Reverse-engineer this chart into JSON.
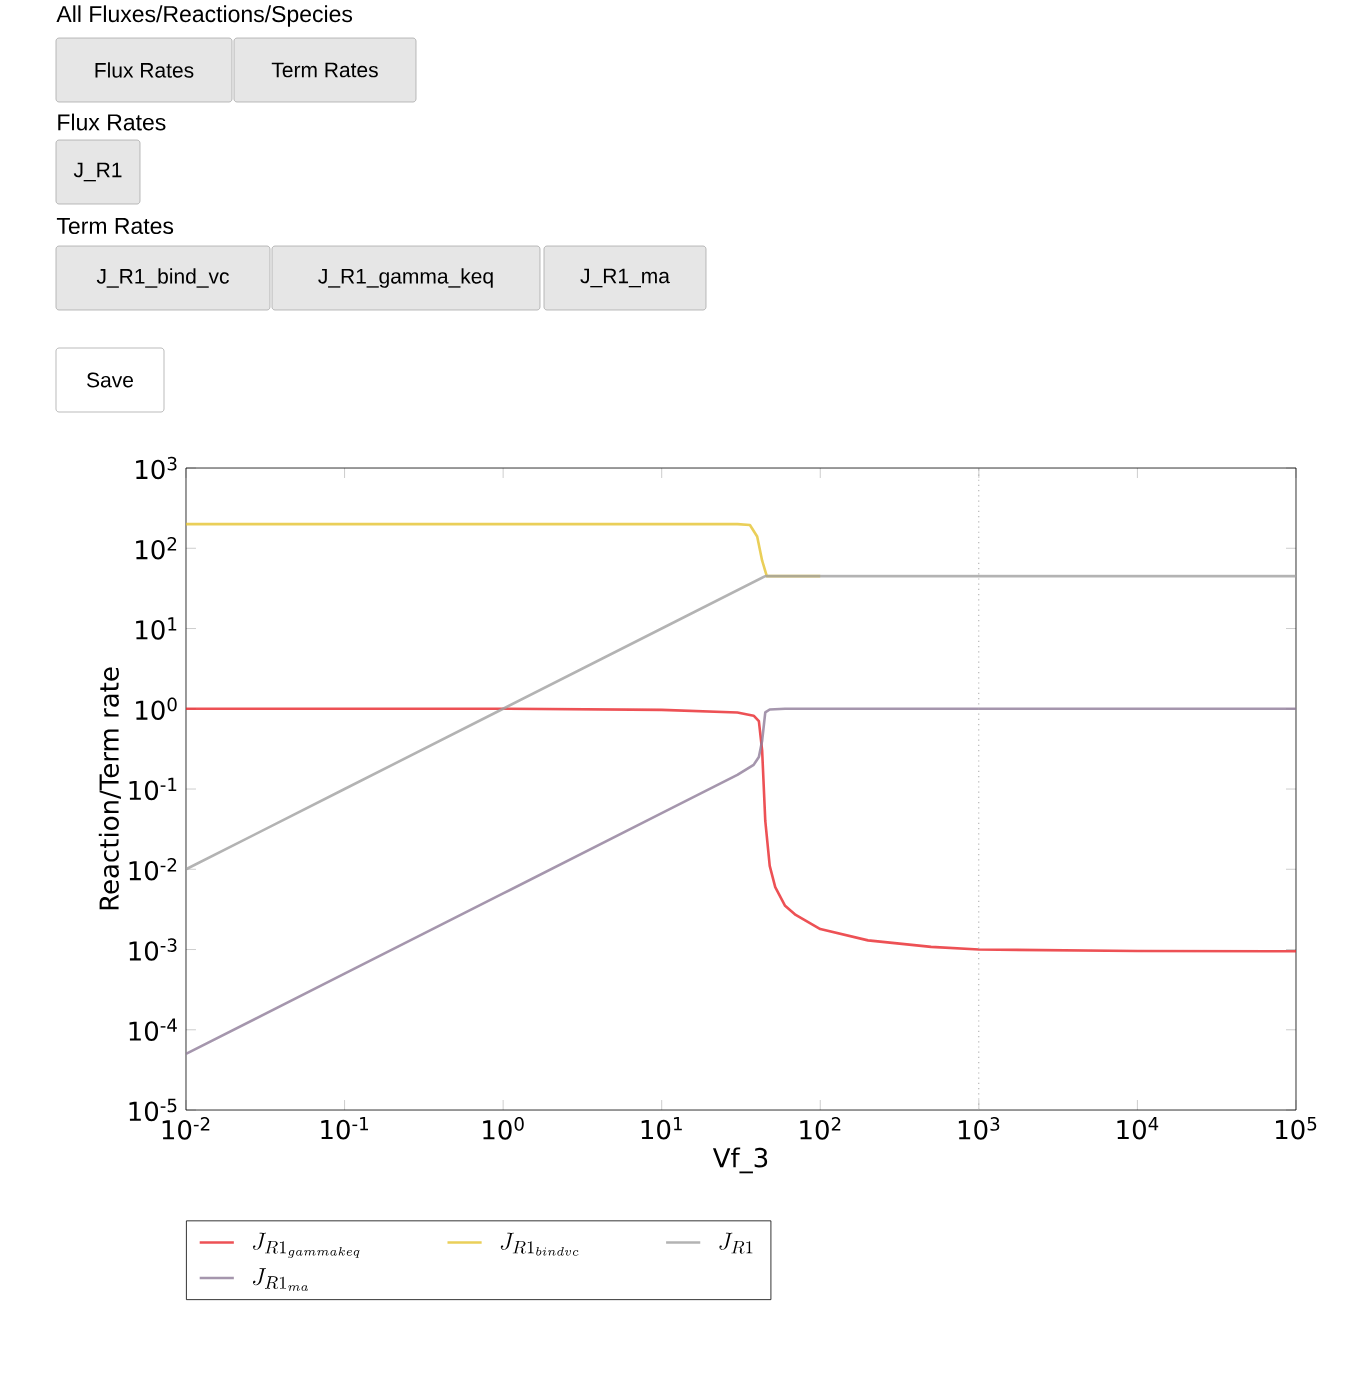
{
  "chart_data": {
    "type": "line",
    "xlabel": "Vf_3",
    "ylabel": "Reaction/Term rate",
    "log": "xy",
    "grid": false,
    "legend": "bottom",
    "line_style": "solid",
    "marker": "none",
    "xlim": [
      0.01,
      100000
    ],
    "ylim": [
      1e-05,
      1000
    ],
    "xticks": [
      {
        "value": 0.01,
        "label": "10$^{-2}$"
      },
      {
        "value": 0.1,
        "label": "10$^{-1}$"
      },
      {
        "value": 1,
        "label": "10$^{0}$"
      },
      {
        "value": 10,
        "label": "10$^{1}$"
      },
      {
        "value": 100,
        "label": "10$^{2}$"
      },
      {
        "value": 1000,
        "label": "10$^{3}$"
      },
      {
        "value": 10000,
        "label": "10$^{4}$"
      },
      {
        "value": 100000,
        "label": "10$^{5}$"
      }
    ],
    "yticks": [
      {
        "value": 1e-05,
        "label": "10$^{-5}$"
      },
      {
        "value": 0.0001,
        "label": "10$^{-4}$"
      },
      {
        "value": 0.001,
        "label": "10$^{-3}$"
      },
      {
        "value": 0.01,
        "label": "10$^{-2}$"
      },
      {
        "value": 0.1,
        "label": "10$^{-1}$"
      },
      {
        "value": 1,
        "label": "10$^{0}$"
      },
      {
        "value": 10,
        "label": "10$^{1}$"
      },
      {
        "value": 100,
        "label": "10$^{2}$"
      },
      {
        "value": 1000,
        "label": "10$^{3}$"
      }
    ],
    "ref_lines": [
      {
        "axis": "x",
        "value": 1000,
        "color": "#aaaaaa",
        "line_style": "dotted"
      }
    ],
    "annotations": [
      "All Fluxes/Reactions/Species",
      "Flux Rates",
      "Term Rates",
      "Flux Rates",
      "J_R1",
      "Term Rates",
      "J_R1_bind_vc",
      "J_R1_gamma_keq",
      "J_R1_ma",
      "Save"
    ],
    "series": [
      {
        "name": "J_{R1_{gammakeq}}",
        "color": "#e8262a",
        "x": [
          0.01,
          1,
          10,
          30,
          38,
          41,
          43,
          45,
          48,
          52,
          60,
          70,
          100,
          200,
          500,
          1000,
          10000,
          100000
        ],
        "values": [
          1,
          1,
          0.97,
          0.9,
          0.82,
          0.7,
          0.3,
          0.04,
          0.011,
          0.006,
          0.0035,
          0.0027,
          0.0018,
          0.0013,
          0.00108,
          0.001,
          0.00096,
          0.00095
        ]
      },
      {
        "name": "J_{R1_{bindvc}}",
        "color": "#e5c32f",
        "x": [
          0.01,
          1,
          10,
          30,
          36,
          40,
          43,
          46,
          100
        ],
        "values": [
          200,
          200,
          200,
          200,
          195,
          140,
          70,
          45,
          45
        ]
      },
      {
        "name": "J_{R1}",
        "color": "#a0a0a0",
        "x": [
          0.01,
          0.1,
          1,
          10,
          45,
          100,
          1000,
          100000
        ],
        "values": [
          0.01,
          0.1,
          1,
          10,
          45,
          45,
          45,
          45
        ]
      },
      {
        "name": "J_{R1_{ma}}",
        "color": "#8e7c98",
        "x": [
          0.01,
          0.1,
          1,
          10,
          30,
          38,
          41,
          43,
          45,
          48,
          60,
          100,
          1000,
          100000
        ],
        "values": [
          5e-05,
          0.0005,
          0.005,
          0.05,
          0.15,
          0.2,
          0.25,
          0.4,
          0.9,
          0.98,
          1,
          1,
          1,
          1
        ]
      }
    ]
  }
}
